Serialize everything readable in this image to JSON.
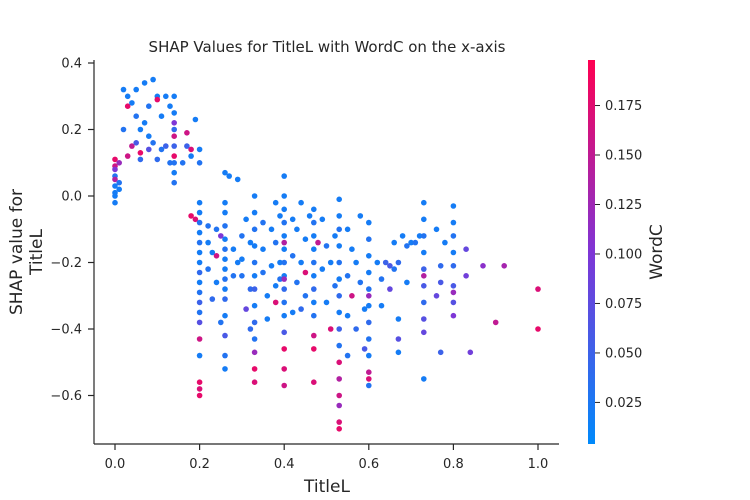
{
  "chart_data": {
    "type": "scatter",
    "title": "SHAP Values for TitleL with WordC on the x-axis",
    "xlabel": "TitleL",
    "ylabel_lines": [
      "SHAP value for",
      "TitleL"
    ],
    "xlim": [
      -0.05,
      1.05
    ],
    "ylim": [
      -0.75,
      0.4
    ],
    "x_ticks": [
      "0.0",
      "0.2",
      "0.4",
      "0.6",
      "0.8",
      "1.0"
    ],
    "y_ticks": [
      "0.4",
      "0.2",
      "0.0",
      "−0.2",
      "−0.4",
      "−0.6"
    ],
    "grid": false,
    "colorbar": {
      "label": "WordC",
      "range": [
        0.004,
        0.198
      ],
      "ticks": [
        "0.025",
        "0.050",
        "0.075",
        "0.100",
        "0.125",
        "0.150",
        "0.175"
      ],
      "colormap": [
        "#008afb",
        "#7f35d6",
        "#ff0051"
      ]
    },
    "point_color_low": "#008afb",
    "point_color_high": "#ff0051",
    "points": [
      [
        0.0,
        0.0,
        0.02
      ],
      [
        0.0,
        0.03,
        0.02
      ],
      [
        0.0,
        0.06,
        0.03
      ],
      [
        0.0,
        0.09,
        0.16
      ],
      [
        0.0,
        0.11,
        0.18
      ],
      [
        0.0,
        0.05,
        0.14
      ],
      [
        0.0,
        -0.02,
        0.02
      ],
      [
        0.0,
        0.01,
        0.02
      ],
      [
        0.0,
        0.08,
        0.1
      ],
      [
        0.01,
        0.02,
        0.02
      ],
      [
        0.01,
        0.04,
        0.03
      ],
      [
        0.01,
        0.1,
        0.12
      ],
      [
        0.02,
        0.32,
        0.02
      ],
      [
        0.03,
        0.3,
        0.02
      ],
      [
        0.03,
        0.27,
        0.18
      ],
      [
        0.02,
        0.2,
        0.03
      ],
      [
        0.03,
        0.12,
        0.16
      ],
      [
        0.04,
        0.28,
        0.02
      ],
      [
        0.04,
        0.15,
        0.15
      ],
      [
        0.05,
        0.32,
        0.02
      ],
      [
        0.05,
        0.24,
        0.03
      ],
      [
        0.05,
        0.16,
        0.06
      ],
      [
        0.06,
        0.13,
        0.18
      ],
      [
        0.06,
        0.2,
        0.02
      ],
      [
        0.06,
        0.11,
        0.04
      ],
      [
        0.07,
        0.34,
        0.02
      ],
      [
        0.07,
        0.22,
        0.02
      ],
      [
        0.08,
        0.27,
        0.03
      ],
      [
        0.08,
        0.18,
        0.02
      ],
      [
        0.08,
        0.14,
        0.07
      ],
      [
        0.09,
        0.35,
        0.02
      ],
      [
        0.09,
        0.16,
        0.03
      ],
      [
        0.1,
        0.3,
        0.02
      ],
      [
        0.1,
        0.11,
        0.04
      ],
      [
        0.11,
        0.24,
        0.02
      ],
      [
        0.11,
        0.14,
        0.03
      ],
      [
        0.1,
        0.29,
        0.18
      ],
      [
        0.12,
        0.3,
        0.02
      ],
      [
        0.12,
        0.15,
        0.05
      ],
      [
        0.13,
        0.27,
        0.02
      ],
      [
        0.13,
        0.1,
        0.03
      ],
      [
        0.14,
        0.3,
        0.02
      ],
      [
        0.14,
        0.25,
        0.02
      ],
      [
        0.14,
        0.2,
        0.04
      ],
      [
        0.14,
        0.15,
        0.05
      ],
      [
        0.14,
        0.1,
        0.03
      ],
      [
        0.14,
        0.07,
        0.02
      ],
      [
        0.14,
        0.04,
        0.03
      ],
      [
        0.14,
        0.18,
        0.16
      ],
      [
        0.14,
        0.12,
        0.18
      ],
      [
        0.14,
        0.22,
        0.1
      ],
      [
        0.16,
        0.1,
        0.03
      ],
      [
        0.17,
        0.15,
        0.05
      ],
      [
        0.17,
        0.19,
        0.16
      ],
      [
        0.18,
        0.14,
        0.17
      ],
      [
        0.18,
        0.12,
        0.02
      ],
      [
        0.19,
        0.23,
        0.02
      ],
      [
        0.2,
        0.14,
        0.02
      ],
      [
        0.2,
        0.1,
        0.03
      ],
      [
        0.18,
        -0.06,
        0.18
      ],
      [
        0.19,
        -0.07,
        0.17
      ],
      [
        0.2,
        -0.02,
        0.02
      ],
      [
        0.2,
        -0.05,
        0.02
      ],
      [
        0.2,
        -0.08,
        0.03
      ],
      [
        0.2,
        -0.11,
        0.02
      ],
      [
        0.2,
        -0.14,
        0.03
      ],
      [
        0.2,
        -0.17,
        0.02
      ],
      [
        0.2,
        -0.2,
        0.02
      ],
      [
        0.2,
        -0.23,
        0.04
      ],
      [
        0.2,
        -0.26,
        0.02
      ],
      [
        0.2,
        -0.29,
        0.03
      ],
      [
        0.2,
        -0.32,
        0.05
      ],
      [
        0.2,
        -0.35,
        0.03
      ],
      [
        0.2,
        -0.38,
        0.07
      ],
      [
        0.2,
        -0.43,
        0.16
      ],
      [
        0.2,
        -0.48,
        0.02
      ],
      [
        0.2,
        -0.56,
        0.18
      ],
      [
        0.2,
        -0.58,
        0.17
      ],
      [
        0.2,
        -0.6,
        0.18
      ],
      [
        0.22,
        -0.09,
        0.03
      ],
      [
        0.22,
        -0.14,
        0.02
      ],
      [
        0.22,
        -0.22,
        0.03
      ],
      [
        0.23,
        -0.17,
        0.02
      ],
      [
        0.23,
        -0.31,
        0.04
      ],
      [
        0.24,
        -0.1,
        0.03
      ],
      [
        0.24,
        -0.18,
        0.16
      ],
      [
        0.24,
        -0.26,
        0.02
      ],
      [
        0.25,
        -0.38,
        0.03
      ],
      [
        0.25,
        -0.12,
        0.1
      ],
      [
        0.26,
        -0.02,
        0.02
      ],
      [
        0.26,
        -0.05,
        0.02
      ],
      [
        0.26,
        -0.09,
        0.03
      ],
      [
        0.26,
        -0.13,
        0.02
      ],
      [
        0.26,
        -0.16,
        0.03
      ],
      [
        0.26,
        -0.19,
        0.02
      ],
      [
        0.26,
        -0.22,
        0.02
      ],
      [
        0.26,
        -0.25,
        0.03
      ],
      [
        0.26,
        -0.28,
        0.02
      ],
      [
        0.26,
        -0.31,
        0.04
      ],
      [
        0.26,
        -0.36,
        0.02
      ],
      [
        0.26,
        -0.42,
        0.06
      ],
      [
        0.26,
        -0.48,
        0.03
      ],
      [
        0.26,
        -0.52,
        0.02
      ],
      [
        0.26,
        0.07,
        0.02
      ],
      [
        0.27,
        0.06,
        0.02
      ],
      [
        0.28,
        -0.16,
        0.02
      ],
      [
        0.28,
        -0.24,
        0.03
      ],
      [
        0.29,
        0.05,
        0.02
      ],
      [
        0.29,
        -0.2,
        0.02
      ],
      [
        0.3,
        -0.12,
        0.03
      ],
      [
        0.3,
        -0.19,
        0.02
      ],
      [
        0.3,
        -0.24,
        0.03
      ],
      [
        0.31,
        -0.07,
        0.02
      ],
      [
        0.31,
        -0.34,
        0.08
      ],
      [
        0.32,
        -0.14,
        0.02
      ],
      [
        0.32,
        -0.28,
        0.04
      ],
      [
        0.32,
        -0.4,
        0.04
      ],
      [
        0.33,
        0.0,
        0.02
      ],
      [
        0.33,
        -0.05,
        0.02
      ],
      [
        0.33,
        -0.1,
        0.03
      ],
      [
        0.33,
        -0.15,
        0.02
      ],
      [
        0.33,
        -0.2,
        0.03
      ],
      [
        0.33,
        -0.24,
        0.02
      ],
      [
        0.33,
        -0.28,
        0.05
      ],
      [
        0.33,
        -0.33,
        0.02
      ],
      [
        0.33,
        -0.38,
        0.04
      ],
      [
        0.33,
        -0.43,
        0.03
      ],
      [
        0.33,
        -0.52,
        0.18
      ],
      [
        0.33,
        -0.56,
        0.17
      ],
      [
        0.33,
        -0.47,
        0.12
      ],
      [
        0.35,
        -0.08,
        0.03
      ],
      [
        0.35,
        -0.16,
        0.02
      ],
      [
        0.35,
        -0.23,
        0.03
      ],
      [
        0.36,
        -0.3,
        0.02
      ],
      [
        0.36,
        -0.37,
        0.02
      ],
      [
        0.37,
        -0.1,
        0.02
      ],
      [
        0.37,
        -0.21,
        0.02
      ],
      [
        0.38,
        -0.02,
        0.02
      ],
      [
        0.38,
        -0.14,
        0.03
      ],
      [
        0.38,
        -0.27,
        0.02
      ],
      [
        0.38,
        -0.32,
        0.17
      ],
      [
        0.39,
        -0.06,
        0.02
      ],
      [
        0.39,
        -0.2,
        0.02
      ],
      [
        0.39,
        -0.25,
        0.03
      ],
      [
        0.4,
        0.06,
        0.02
      ],
      [
        0.4,
        0.0,
        0.02
      ],
      [
        0.4,
        -0.04,
        0.02
      ],
      [
        0.4,
        -0.08,
        0.03
      ],
      [
        0.4,
        -0.12,
        0.02
      ],
      [
        0.4,
        -0.16,
        0.02
      ],
      [
        0.4,
        -0.2,
        0.03
      ],
      [
        0.4,
        -0.24,
        0.02
      ],
      [
        0.4,
        -0.28,
        0.04
      ],
      [
        0.4,
        -0.32,
        0.03
      ],
      [
        0.4,
        -0.36,
        0.02
      ],
      [
        0.4,
        -0.41,
        0.06
      ],
      [
        0.4,
        -0.46,
        0.18
      ],
      [
        0.4,
        -0.52,
        0.17
      ],
      [
        0.4,
        -0.57,
        0.16
      ],
      [
        0.4,
        -0.14,
        0.14
      ],
      [
        0.4,
        -0.25,
        0.12
      ],
      [
        0.42,
        -0.07,
        0.02
      ],
      [
        0.42,
        -0.18,
        0.03
      ],
      [
        0.42,
        -0.35,
        0.02
      ],
      [
        0.43,
        -0.1,
        0.02
      ],
      [
        0.43,
        -0.26,
        0.03
      ],
      [
        0.44,
        -0.02,
        0.02
      ],
      [
        0.44,
        -0.2,
        0.02
      ],
      [
        0.44,
        -0.34,
        0.04
      ],
      [
        0.45,
        -0.13,
        0.02
      ],
      [
        0.45,
        -0.23,
        0.17
      ],
      [
        0.45,
        -0.3,
        0.03
      ],
      [
        0.46,
        -0.06,
        0.02
      ],
      [
        0.47,
        -0.04,
        0.02
      ],
      [
        0.47,
        -0.08,
        0.03
      ],
      [
        0.47,
        -0.12,
        0.02
      ],
      [
        0.47,
        -0.16,
        0.02
      ],
      [
        0.47,
        -0.2,
        0.03
      ],
      [
        0.47,
        -0.24,
        0.02
      ],
      [
        0.47,
        -0.28,
        0.04
      ],
      [
        0.47,
        -0.32,
        0.02
      ],
      [
        0.47,
        -0.36,
        0.03
      ],
      [
        0.47,
        -0.42,
        0.16
      ],
      [
        0.47,
        -0.46,
        0.18
      ],
      [
        0.47,
        -0.56,
        0.17
      ],
      [
        0.48,
        -0.14,
        0.15
      ],
      [
        0.49,
        -0.07,
        0.02
      ],
      [
        0.49,
        -0.22,
        0.02
      ],
      [
        0.5,
        -0.15,
        0.03
      ],
      [
        0.5,
        -0.32,
        0.02
      ],
      [
        0.51,
        -0.4,
        0.17
      ],
      [
        0.51,
        -0.2,
        0.02
      ],
      [
        0.52,
        -0.27,
        0.03
      ],
      [
        0.52,
        -0.12,
        0.02
      ],
      [
        0.53,
        -0.01,
        0.02
      ],
      [
        0.53,
        -0.06,
        0.02
      ],
      [
        0.53,
        -0.1,
        0.03
      ],
      [
        0.53,
        -0.15,
        0.02
      ],
      [
        0.53,
        -0.2,
        0.03
      ],
      [
        0.53,
        -0.25,
        0.02
      ],
      [
        0.53,
        -0.3,
        0.04
      ],
      [
        0.53,
        -0.35,
        0.02
      ],
      [
        0.53,
        -0.4,
        0.05
      ],
      [
        0.53,
        -0.45,
        0.03
      ],
      [
        0.53,
        -0.5,
        0.17
      ],
      [
        0.53,
        -0.55,
        0.14
      ],
      [
        0.53,
        -0.6,
        0.16
      ],
      [
        0.53,
        -0.68,
        0.17
      ],
      [
        0.53,
        -0.7,
        0.18
      ],
      [
        0.53,
        -0.63,
        0.12
      ],
      [
        0.55,
        -0.1,
        0.02
      ],
      [
        0.55,
        -0.24,
        0.03
      ],
      [
        0.55,
        -0.36,
        0.02
      ],
      [
        0.55,
        -0.48,
        0.03
      ],
      [
        0.56,
        -0.16,
        0.02
      ],
      [
        0.56,
        -0.3,
        0.16
      ],
      [
        0.57,
        -0.2,
        0.02
      ],
      [
        0.57,
        -0.4,
        0.04
      ],
      [
        0.58,
        -0.06,
        0.02
      ],
      [
        0.58,
        -0.26,
        0.03
      ],
      [
        0.59,
        -0.34,
        0.02
      ],
      [
        0.59,
        -0.46,
        0.06
      ],
      [
        0.6,
        -0.08,
        0.02
      ],
      [
        0.6,
        -0.13,
        0.03
      ],
      [
        0.6,
        -0.18,
        0.02
      ],
      [
        0.6,
        -0.23,
        0.02
      ],
      [
        0.6,
        -0.28,
        0.03
      ],
      [
        0.6,
        -0.33,
        0.02
      ],
      [
        0.6,
        -0.38,
        0.04
      ],
      [
        0.6,
        -0.43,
        0.03
      ],
      [
        0.6,
        -0.48,
        0.02
      ],
      [
        0.6,
        -0.53,
        0.15
      ],
      [
        0.6,
        -0.55,
        0.17
      ],
      [
        0.6,
        -0.57,
        0.03
      ],
      [
        0.6,
        -0.3,
        0.12
      ],
      [
        0.62,
        -0.2,
        0.02
      ],
      [
        0.63,
        -0.25,
        0.03
      ],
      [
        0.63,
        -0.33,
        0.02
      ],
      [
        0.64,
        -0.2,
        0.05
      ],
      [
        0.65,
        -0.21,
        0.06
      ],
      [
        0.65,
        -0.28,
        0.08
      ],
      [
        0.66,
        -0.14,
        0.02
      ],
      [
        0.66,
        -0.22,
        0.03
      ],
      [
        0.67,
        -0.37,
        0.02
      ],
      [
        0.67,
        -0.47,
        0.02
      ],
      [
        0.67,
        -0.2,
        0.04
      ],
      [
        0.67,
        -0.43,
        0.07
      ],
      [
        0.68,
        -0.12,
        0.02
      ],
      [
        0.69,
        -0.15,
        0.03
      ],
      [
        0.69,
        -0.26,
        0.02
      ],
      [
        0.7,
        -0.14,
        0.02
      ],
      [
        0.71,
        -0.14,
        0.03
      ],
      [
        0.72,
        -0.12,
        0.02
      ],
      [
        0.73,
        -0.02,
        0.02
      ],
      [
        0.73,
        -0.07,
        0.02
      ],
      [
        0.73,
        -0.12,
        0.03
      ],
      [
        0.73,
        -0.17,
        0.02
      ],
      [
        0.73,
        -0.22,
        0.05
      ],
      [
        0.73,
        -0.27,
        0.06
      ],
      [
        0.73,
        -0.32,
        0.04
      ],
      [
        0.73,
        -0.37,
        0.07
      ],
      [
        0.73,
        -0.41,
        0.08
      ],
      [
        0.73,
        -0.55,
        0.02
      ],
      [
        0.73,
        -0.24,
        0.14
      ],
      [
        0.76,
        -0.1,
        0.02
      ],
      [
        0.76,
        -0.3,
        0.08
      ],
      [
        0.77,
        -0.21,
        0.04
      ],
      [
        0.77,
        -0.26,
        0.06
      ],
      [
        0.77,
        -0.47,
        0.05
      ],
      [
        0.78,
        -0.14,
        0.02
      ],
      [
        0.8,
        -0.03,
        0.02
      ],
      [
        0.8,
        -0.08,
        0.02
      ],
      [
        0.8,
        -0.12,
        0.03
      ],
      [
        0.8,
        -0.17,
        0.02
      ],
      [
        0.8,
        -0.21,
        0.04
      ],
      [
        0.8,
        -0.27,
        0.06
      ],
      [
        0.8,
        -0.32,
        0.07
      ],
      [
        0.8,
        -0.36,
        0.1
      ],
      [
        0.8,
        -0.29,
        0.12
      ],
      [
        0.83,
        -0.16,
        0.08
      ],
      [
        0.83,
        -0.24,
        0.09
      ],
      [
        0.84,
        -0.47,
        0.09
      ],
      [
        0.87,
        -0.21,
        0.11
      ],
      [
        0.9,
        -0.38,
        0.15
      ],
      [
        0.92,
        -0.21,
        0.13
      ],
      [
        1.0,
        -0.28,
        0.17
      ],
      [
        1.0,
        -0.4,
        0.18
      ]
    ]
  }
}
